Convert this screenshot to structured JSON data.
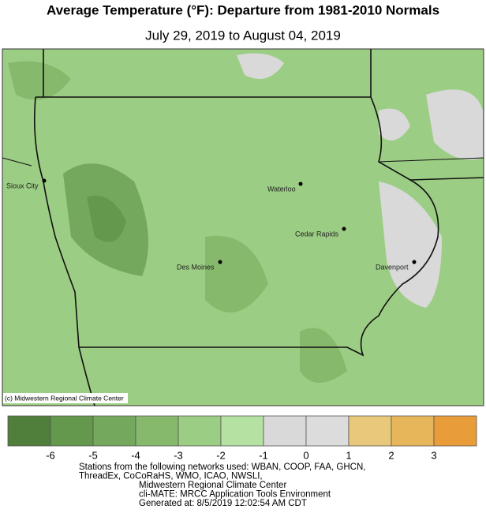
{
  "header": {
    "title": "Average Temperature (°F): Departure from 1981-2010 Normals",
    "subtitle": "July 29, 2019 to August 04, 2019"
  },
  "map": {
    "cities": [
      "Sioux City",
      "Waterloo",
      "Cedar Rapids",
      "Des Moines",
      "Davenport"
    ],
    "credit": "(c) Midwestern Regional Climate Center"
  },
  "legend": {
    "colors": [
      "#4f7f3b",
      "#64984c",
      "#74a85c",
      "#87b96d",
      "#9ccd84",
      "#b5e2a2",
      "#d9d9d9",
      "#dcdcdc",
      "#e8c97b",
      "#e8b65a",
      "#e99c3a"
    ],
    "ticks": [
      -6,
      -5,
      -4,
      -3,
      -2,
      -1,
      0,
      1,
      2,
      3
    ]
  },
  "footer": [
    "Stations from the following networks used: WBAN, COOP, FAA, GHCN,",
    "ThreadEx, CoCoRaHS, WMO, ICAO, NWSLI,",
    "Midwestern Regional Climate Center",
    "cli-MATE: MRCC Application Tools Environment",
    "Generated at: 8/5/2019 12:02:54 AM CDT"
  ]
}
